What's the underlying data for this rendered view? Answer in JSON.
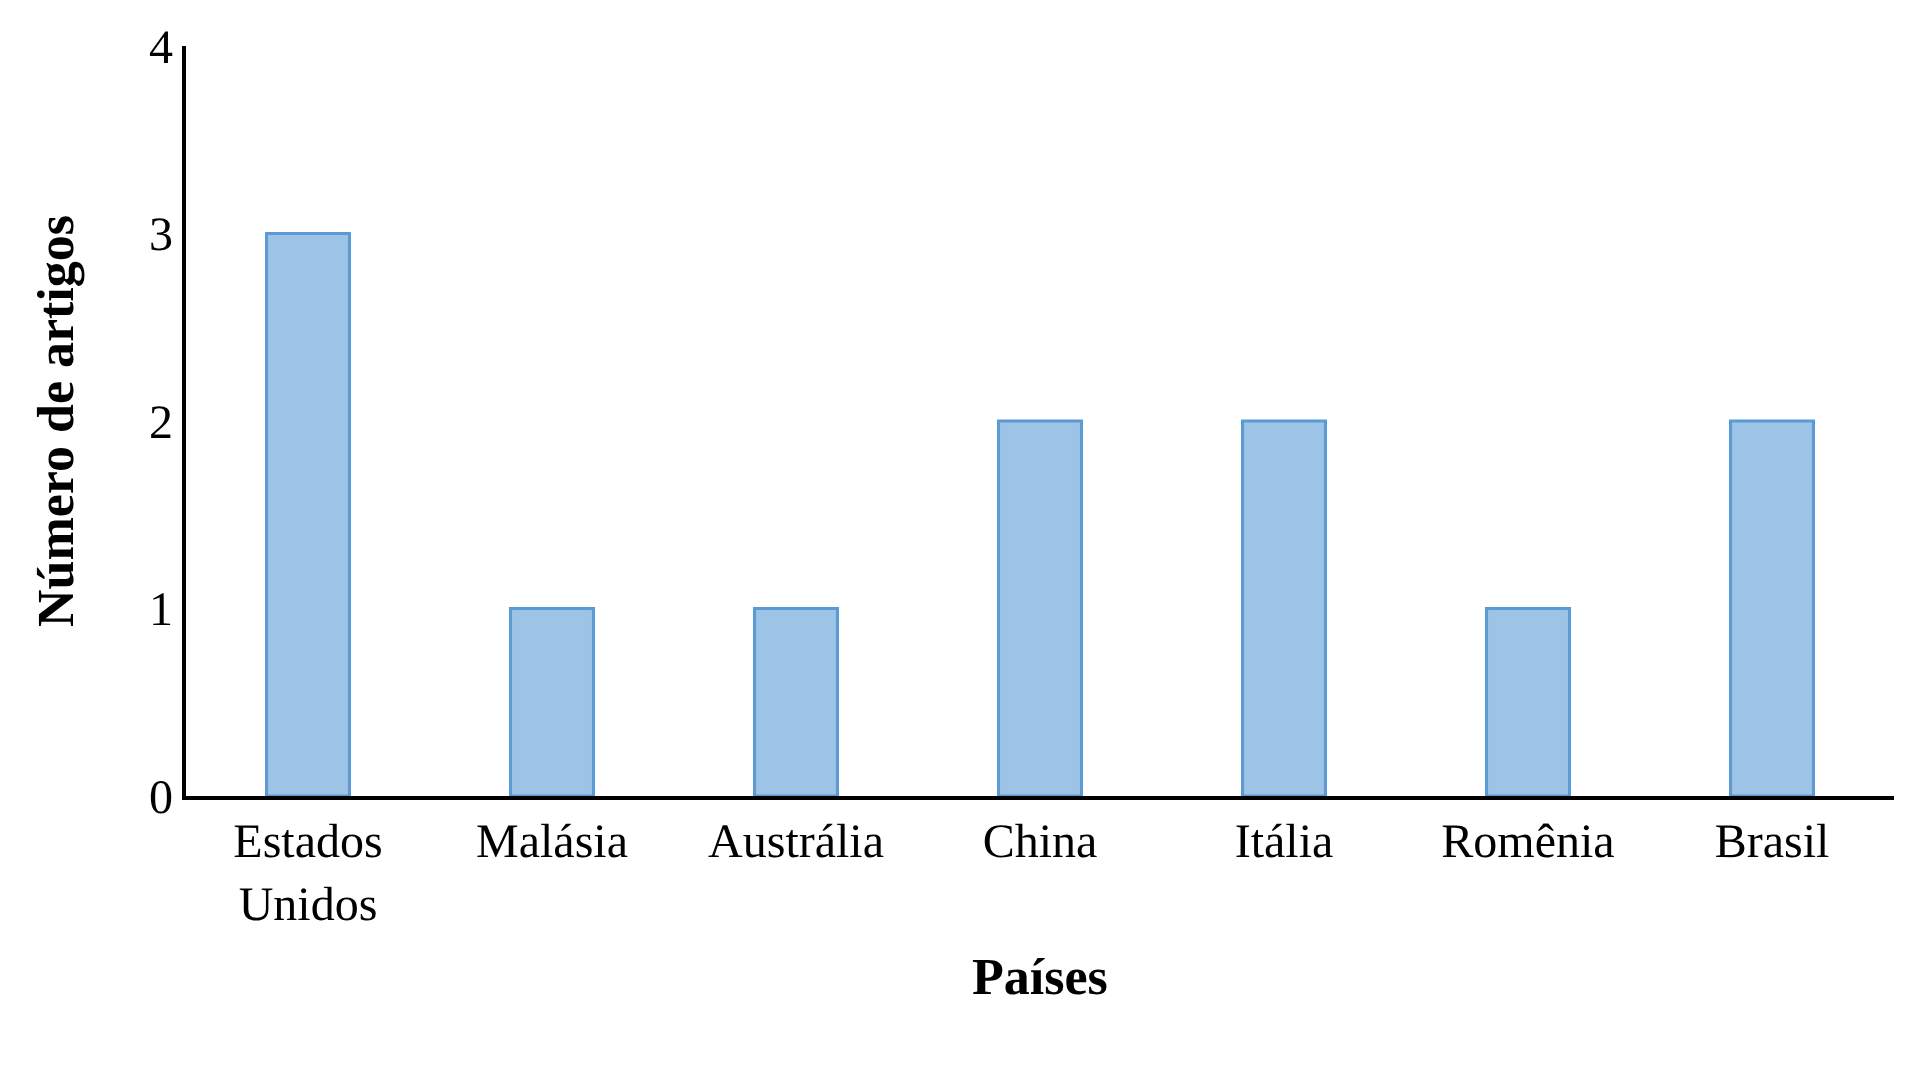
{
  "chart_data": {
    "type": "bar",
    "xlabel": "Países",
    "ylabel": "Número de artigos",
    "categories": [
      "Estados Unidos",
      "Malásia",
      "Austrália",
      "China",
      "Itália",
      "Romênia",
      "Brasil"
    ],
    "values": [
      3,
      1,
      1,
      2,
      2,
      1,
      2
    ],
    "color": "#9dc3e6",
    "ylim": [
      0,
      4
    ],
    "yticks": [
      0,
      1,
      2,
      3,
      4
    ],
    "grid": false
  }
}
